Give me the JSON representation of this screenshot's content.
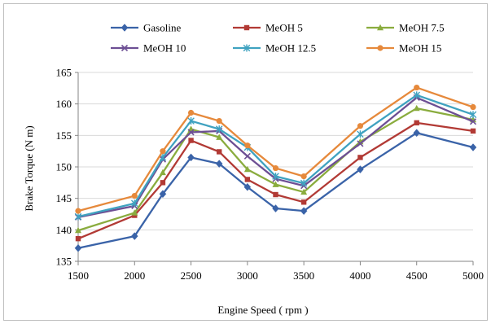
{
  "chart_data": {
    "type": "line",
    "xlabel": "Engine Speed ( rpm )",
    "ylabel": "Brake Torque (N m)",
    "x": [
      1500,
      2000,
      2250,
      2500,
      2750,
      3000,
      3250,
      3500,
      4000,
      4500,
      5000
    ],
    "x_ticks": [
      "1500",
      "2000",
      "2500",
      "3000",
      "3500",
      "4000",
      "4500",
      "5000"
    ],
    "y_ticks": [
      "135",
      "140",
      "145",
      "150",
      "155",
      "160",
      "165"
    ],
    "xlim": [
      1500,
      5000
    ],
    "ylim": [
      135,
      165
    ],
    "grid": "horizontal",
    "legend_position": "top",
    "series": [
      {
        "name": "Gasoline",
        "color": "#3a63a8",
        "marker": "diamond",
        "values": [
          137.1,
          139.0,
          145.7,
          151.5,
          150.5,
          146.8,
          143.4,
          143.0,
          149.6,
          155.4,
          153.1
        ]
      },
      {
        "name": "MeOH 5",
        "color": "#b23a35",
        "marker": "square",
        "values": [
          138.6,
          142.3,
          147.5,
          154.2,
          152.4,
          148.0,
          145.6,
          144.4,
          151.5,
          157.0,
          155.7
        ]
      },
      {
        "name": "MeOH 7.5",
        "color": "#8aac3e",
        "marker": "triangle",
        "values": [
          139.9,
          142.7,
          149.1,
          156.0,
          154.7,
          149.6,
          147.2,
          146.0,
          154.0,
          159.3,
          157.5
        ]
      },
      {
        "name": "MeOH 10",
        "color": "#6d4f94",
        "marker": "x",
        "values": [
          142.0,
          143.8,
          151.2,
          155.5,
          155.7,
          151.7,
          148.1,
          147.0,
          153.7,
          161.0,
          157.2
        ]
      },
      {
        "name": "MeOH 12.5",
        "color": "#3fa2c0",
        "marker": "star",
        "values": [
          142.1,
          144.2,
          151.5,
          157.3,
          156.0,
          153.1,
          148.5,
          147.4,
          155.2,
          161.4,
          158.3
        ]
      },
      {
        "name": "MeOH 15",
        "color": "#e6893b",
        "marker": "circle",
        "values": [
          143.0,
          145.4,
          152.5,
          158.6,
          157.3,
          153.4,
          149.8,
          148.5,
          156.5,
          162.6,
          159.5
        ]
      }
    ]
  }
}
